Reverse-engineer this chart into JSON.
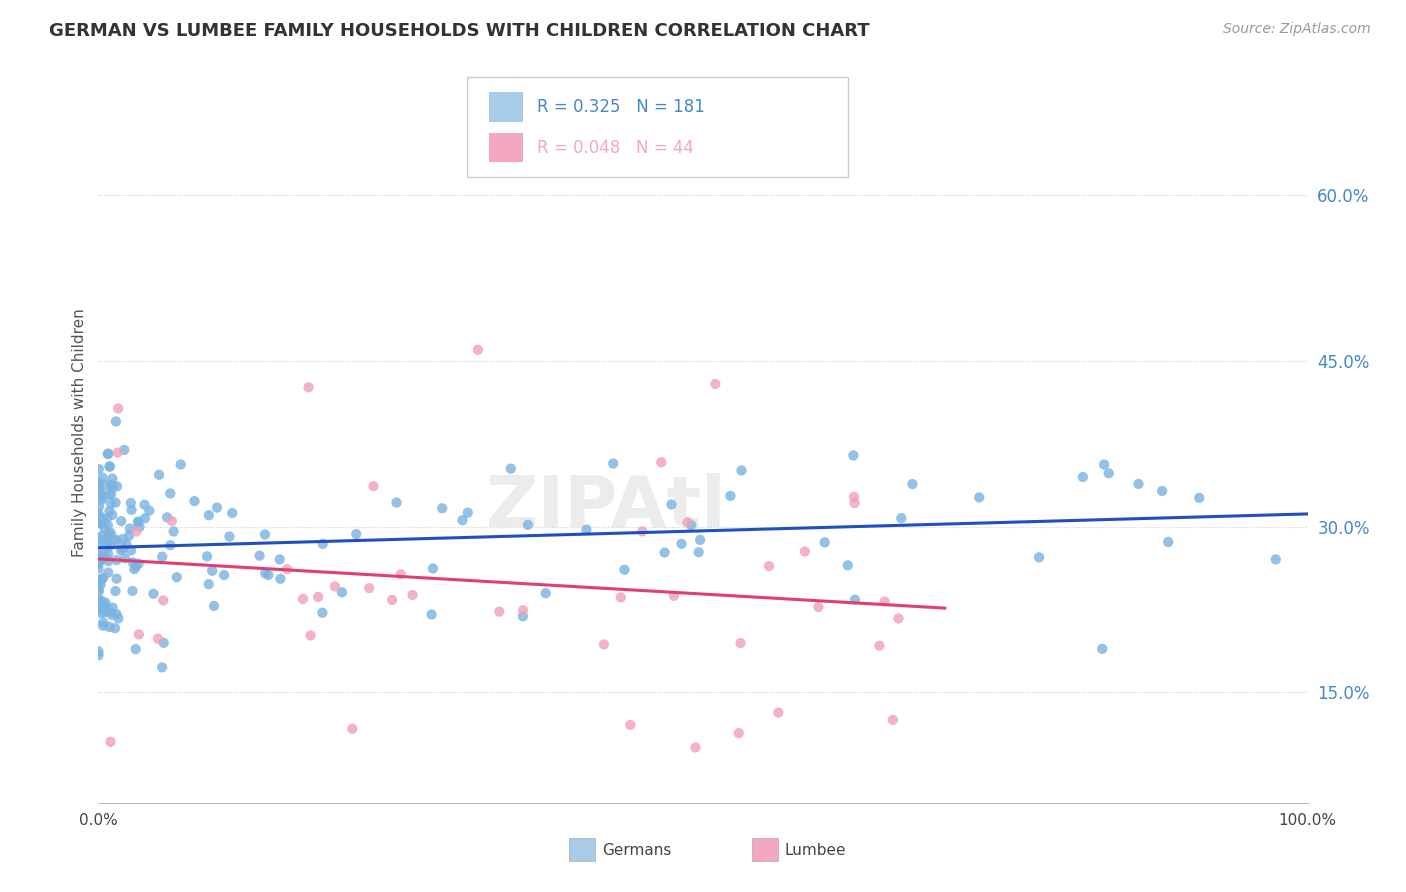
{
  "title": "GERMAN VS LUMBEE FAMILY HOUSEHOLDS WITH CHILDREN CORRELATION CHART",
  "source": "Source: ZipAtlas.com",
  "ylabel": "Family Households with Children",
  "xlim": [
    0.0,
    1.0
  ],
  "ylim": [
    0.05,
    0.72
  ],
  "yticks": [
    0.15,
    0.3,
    0.45,
    0.6
  ],
  "ytick_labels": [
    "15.0%",
    "30.0%",
    "45.0%",
    "60.0%"
  ],
  "german_color": "#7ab3e0",
  "lumbee_color": "#f0a0b8",
  "german_line_color": "#2050c0",
  "lumbee_line_color": "#e04070",
  "R_german": 0.325,
  "N_german": 181,
  "R_lumbee": 0.048,
  "N_lumbee": 44,
  "watermark": "ZIPAtl",
  "background_color": "#ffffff",
  "grid_color": "#cccccc",
  "legend_german_color": "#a8cce8",
  "legend_lumbee_color": "#f4a8c0",
  "legend_text_german": "#4488cc",
  "legend_text_lumbee": "#e05080",
  "ytick_color": "#4488cc",
  "title_color": "#333333",
  "source_color": "#999999"
}
